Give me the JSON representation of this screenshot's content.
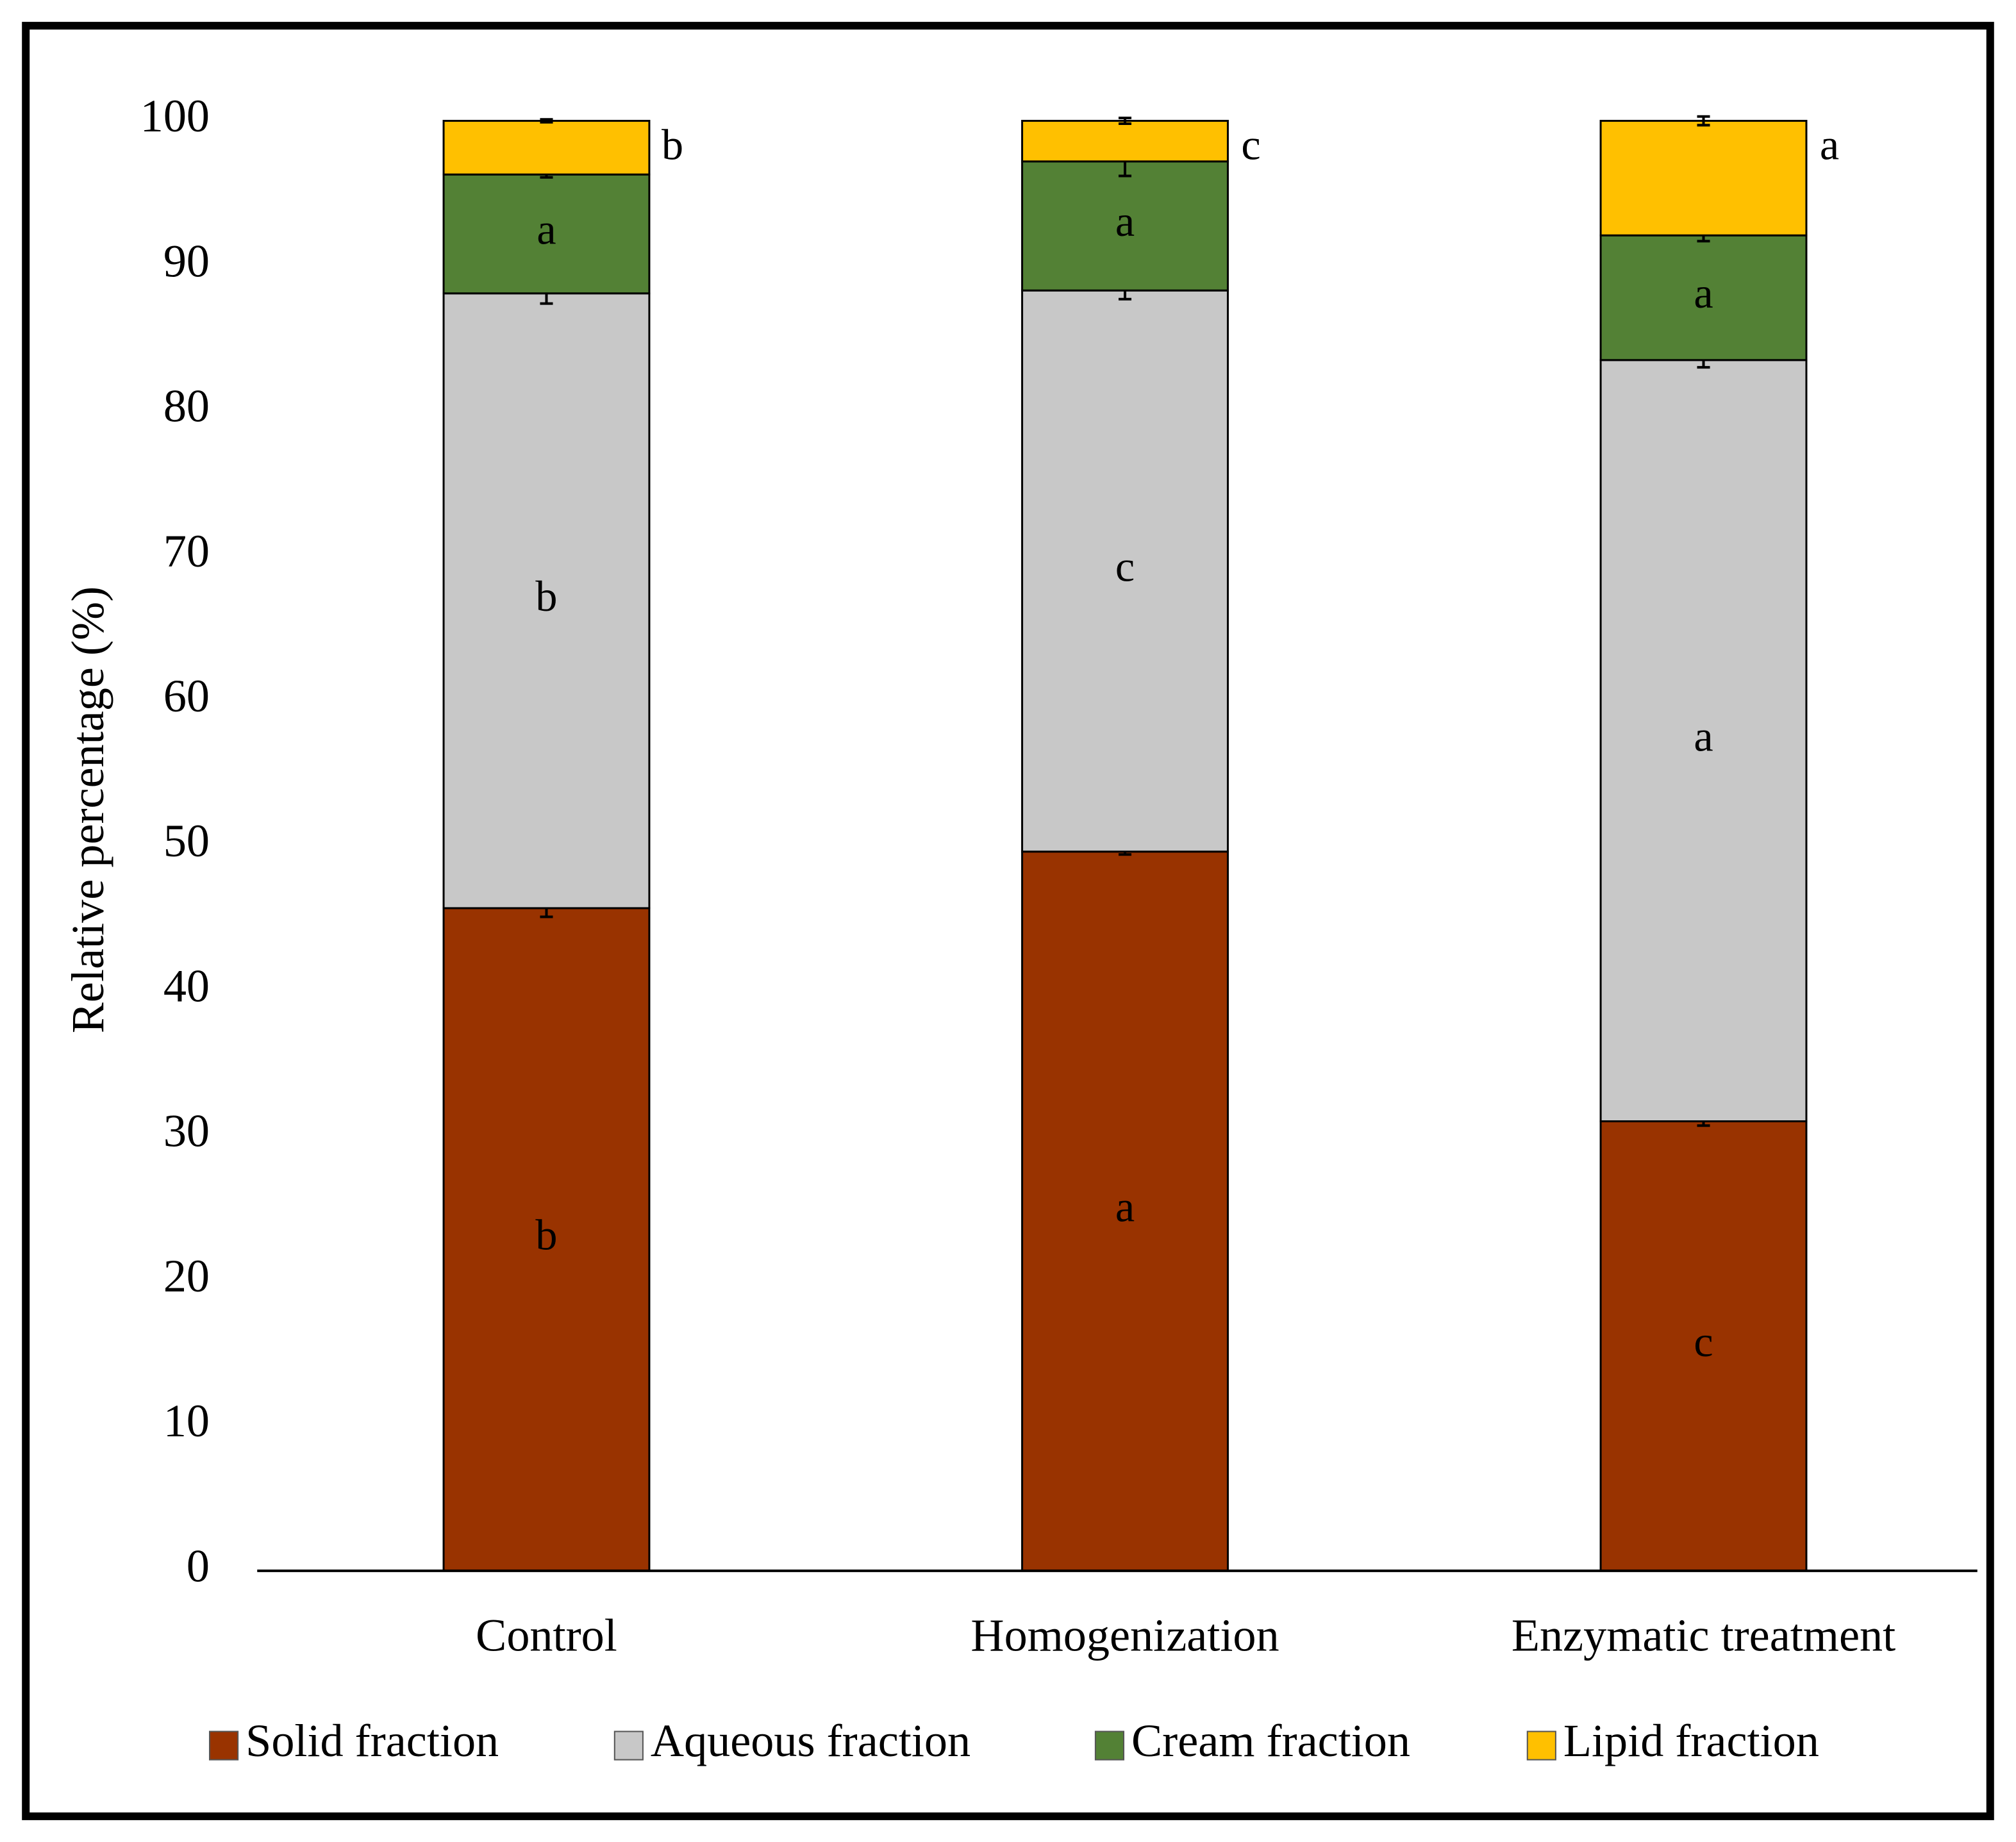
{
  "chart_data": {
    "type": "stacked_bar",
    "y_label": "Relative percentage (%)",
    "categories": [
      "Control",
      "Homogenization",
      "Enzymatic treatment"
    ],
    "series": [
      {
        "name": "Solid fraction",
        "color": "#993300",
        "label_color": "#ffffff",
        "values": [
          45.7,
          49.6,
          31.0
        ],
        "errors": [
          0.6,
          0.2,
          0.3
        ],
        "labels": [
          "b",
          "a",
          "c"
        ]
      },
      {
        "name": "Aqueous fraction",
        "color": "#c8c8c8",
        "label_color": "#000000",
        "values": [
          42.4,
          38.7,
          52.5
        ],
        "errors": [
          0.7,
          0.6,
          0.5
        ],
        "labels": [
          "b",
          "c",
          "a"
        ]
      },
      {
        "name": "Cream fraction",
        "color": "#538135",
        "label_color": "#ffffff",
        "values": [
          8.2,
          8.9,
          8.6
        ],
        "errors": [
          0.2,
          1.0,
          0.4
        ],
        "labels": [
          "a",
          "a",
          "a"
        ]
      },
      {
        "name": "Lipid fraction",
        "color": "#ffc000",
        "label_color": "#000000",
        "values": [
          3.7,
          2.8,
          7.9
        ],
        "errors": [
          0.1,
          0.2,
          0.3
        ],
        "labels": [
          "b",
          "c",
          "a"
        ]
      }
    ],
    "ylim": [
      0,
      100
    ],
    "yticks": [
      0,
      10,
      20,
      30,
      40,
      50,
      60,
      70,
      80,
      90,
      100
    ],
    "legend": "bottom"
  }
}
